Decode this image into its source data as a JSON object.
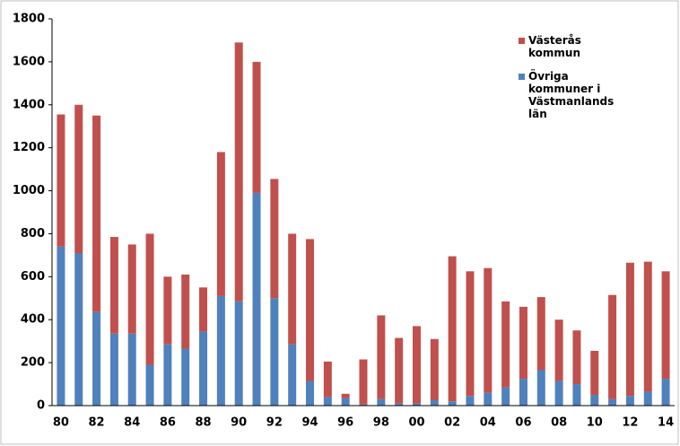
{
  "chart_data": {
    "type": "stacked_bar",
    "categories": [
      "80",
      null,
      "82",
      null,
      "84",
      null,
      "86",
      null,
      "88",
      null,
      "90",
      null,
      "92",
      null,
      "94",
      null,
      "96",
      null,
      "98",
      null,
      "00",
      null,
      "02",
      null,
      "04",
      null,
      "06",
      null,
      "08",
      null,
      "10",
      null,
      "12",
      null,
      "14"
    ],
    "series": [
      {
        "name": "Övriga kommuner i Västmanlands län",
        "color": "#4f81bd",
        "values": [
          740,
          710,
          435,
          335,
          335,
          190,
          285,
          265,
          345,
          510,
          485,
          990,
          500,
          285,
          115,
          40,
          35,
          5,
          30,
          10,
          10,
          25,
          20,
          45,
          60,
          85,
          125,
          165,
          115,
          100,
          50,
          30,
          45,
          65,
          125
        ]
      },
      {
        "name": "Västerås kommun",
        "color": "#c0504d",
        "values": [
          615,
          690,
          915,
          450,
          415,
          610,
          315,
          345,
          205,
          670,
          1205,
          610,
          555,
          515,
          660,
          165,
          20,
          210,
          390,
          305,
          360,
          285,
          675,
          580,
          580,
          400,
          335,
          340,
          285,
          250,
          205,
          485,
          620,
          605,
          500
        ]
      }
    ],
    "ylim": [
      0,
      1800
    ],
    "yticks": [
      0,
      200,
      400,
      600,
      800,
      1000,
      1200,
      1400,
      1600,
      1800
    ],
    "legend": "top-right"
  }
}
